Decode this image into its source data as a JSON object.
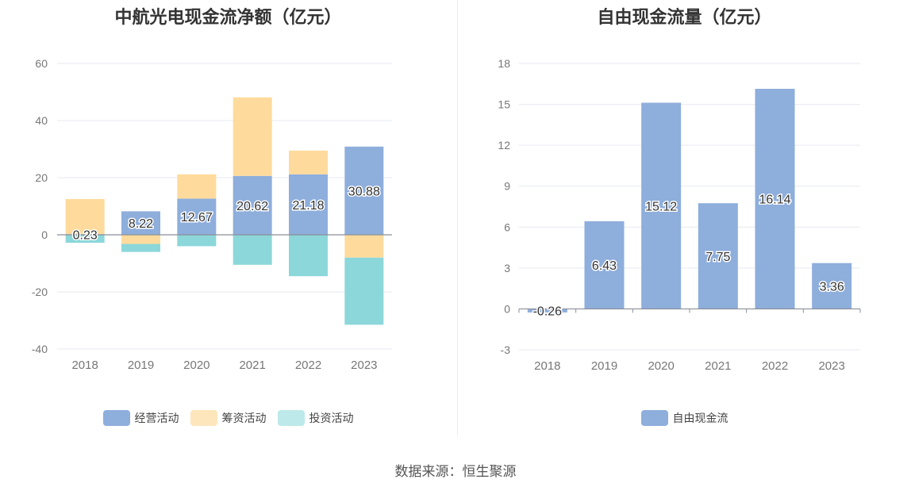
{
  "charts": [
    {
      "title": "中航光电现金流净额（亿元）",
      "legend": [
        {
          "label": "经营活动",
          "color": "#8eaedc"
        },
        {
          "label": "筹资活动",
          "color": "#fedb9c"
        },
        {
          "label": "投资活动",
          "color": "#8cd7d9"
        }
      ]
    },
    {
      "title": "自由现金流量（亿元）",
      "legend": [
        {
          "label": "自由现金流",
          "color": "#8eaedc"
        }
      ]
    }
  ],
  "source": "数据来源：恒生聚源",
  "chart_data": [
    {
      "type": "bar",
      "stacked": true,
      "title": "中航光电现金流净额（亿元）",
      "categories": [
        "2018",
        "2019",
        "2020",
        "2021",
        "2022",
        "2023"
      ],
      "ylim": [
        -40,
        60
      ],
      "yticks": [
        60,
        40,
        20,
        0,
        -20,
        -40
      ],
      "grid": true,
      "legend_position": "bottom",
      "series": [
        {
          "name": "经营活动",
          "color": "#8eaedc",
          "values": [
            0.23,
            8.22,
            12.67,
            20.62,
            21.18,
            30.88
          ],
          "labels": [
            "0.23",
            "8.22",
            "12.67",
            "20.62",
            "21.18",
            "30.88"
          ]
        },
        {
          "name": "筹资活动",
          "color": "#fedb9c",
          "values": [
            12.3,
            -3.2,
            8.5,
            27.5,
            8.3,
            -8
          ]
        },
        {
          "name": "投资活动",
          "color": "#8cd7d9",
          "values": [
            -2.8,
            -2.8,
            -4.0,
            -10.5,
            -14.5,
            -23.5
          ]
        }
      ]
    },
    {
      "type": "bar",
      "title": "自由现金流量（亿元）",
      "categories": [
        "2018",
        "2019",
        "2020",
        "2021",
        "2022",
        "2023"
      ],
      "ylim": [
        -3,
        18
      ],
      "yticks": [
        18,
        15,
        12,
        9,
        6,
        3,
        0,
        -3
      ],
      "grid": true,
      "legend_position": "bottom",
      "series": [
        {
          "name": "自由现金流",
          "color": "#8eaedc",
          "values": [
            -0.26,
            6.43,
            15.12,
            7.75,
            16.14,
            3.36
          ],
          "labels": [
            "-0.26",
            "6.43",
            "15.12",
            "7.75",
            "16.14",
            "3.36"
          ]
        }
      ]
    }
  ]
}
